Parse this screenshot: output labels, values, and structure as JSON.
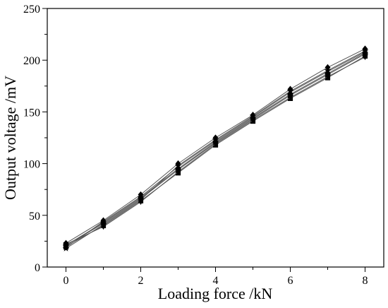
{
  "chart_data": {
    "type": "line",
    "title": "",
    "xlabel": "Loading force /kN",
    "ylabel": "Output voltage /mV",
    "xlim": [
      -0.5,
      8.5
    ],
    "ylim": [
      0,
      250
    ],
    "x_ticks": [
      0,
      2,
      4,
      6,
      8
    ],
    "y_ticks": [
      0,
      50,
      100,
      150,
      200,
      250
    ],
    "grid": false,
    "legend": "none",
    "x": [
      0,
      1,
      2,
      3,
      4,
      5,
      6,
      7,
      8
    ],
    "series": [
      {
        "marker": "square",
        "values": [
          20,
          40,
          64,
          91,
          118,
          141,
          163,
          183,
          204
        ]
      },
      {
        "marker": "circle",
        "values": [
          21,
          42,
          66,
          94,
          120,
          143,
          166,
          186,
          206
        ]
      },
      {
        "marker": "triangle-up",
        "values": [
          19,
          44,
          68,
          97,
          122,
          145,
          169,
          189,
          208
        ]
      },
      {
        "marker": "triangle-down",
        "values": [
          22,
          39,
          63,
          92,
          119,
          142,
          164,
          184,
          203
        ]
      },
      {
        "marker": "diamond",
        "values": [
          23,
          45,
          70,
          100,
          125,
          147,
          172,
          193,
          211
        ]
      },
      {
        "marker": "star",
        "values": [
          18,
          41,
          65,
          98,
          123,
          146,
          170,
          190,
          209
        ]
      },
      {
        "marker": "pentagon",
        "values": [
          21,
          43,
          67,
          95,
          121,
          144,
          167,
          187,
          207
        ]
      }
    ],
    "colors": {
      "line": "#555555",
      "marker": "#000000",
      "axis": "#000000"
    }
  }
}
